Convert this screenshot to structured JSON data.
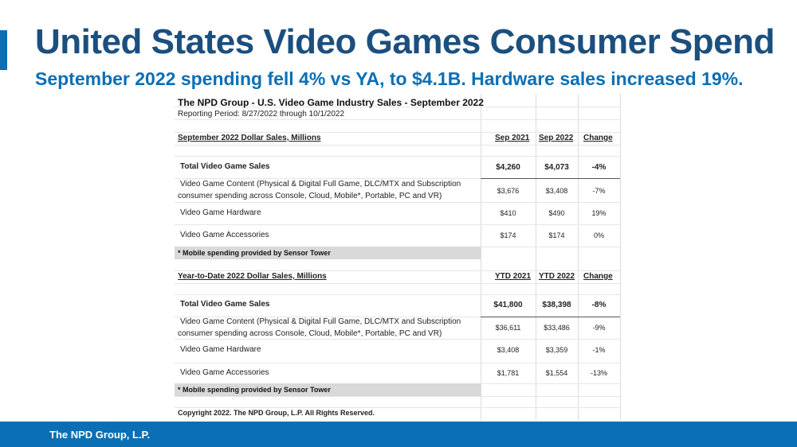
{
  "slide": {
    "title": "United States Video Games Consumer Spend",
    "subtitle": "September 2022 spending fell 4% vs YA, to $4.1B. Hardware sales increased 19%."
  },
  "sheet": {
    "title": "The NPD Group - U.S. Video Game Industry Sales - September 2022",
    "period": "Reporting Period: 8/27/2022 through 10/1/2022",
    "monthly": {
      "section_label": "September 2022 Dollar Sales, Millions",
      "col1": "Sep 2021",
      "col2": "Sep 2022",
      "col3": "Change",
      "rows": [
        {
          "label": "Total Video Game Sales",
          "v1": "$4,260",
          "v2": "$4,073",
          "chg": "-4%"
        },
        {
          "label": "Video Game Content (Physical & Digital Full Game, DLC/MTX and Subscription",
          "label2": "consumer spending across Console, Cloud, Mobile*, Portable, PC and VR)",
          "v1": "$3,676",
          "v2": "$3,408",
          "chg": "-7%"
        },
        {
          "label": "Video Game Hardware",
          "v1": "$410",
          "v2": "$490",
          "chg": "19%"
        },
        {
          "label": "Video Game Accessories",
          "v1": "$174",
          "v2": "$174",
          "chg": "0%"
        }
      ],
      "note": "* Mobile spending provided by Sensor Tower"
    },
    "ytd": {
      "section_label": "Year-to-Date 2022 Dollar Sales, Millions",
      "col1": "YTD 2021",
      "col2": "YTD 2022",
      "col3": "Change",
      "rows": [
        {
          "label": "Total Video Game Sales",
          "v1": "$41,800",
          "v2": "$38,398",
          "chg": "-8%"
        },
        {
          "label": "Video Game Content (Physical & Digital Full Game, DLC/MTX and Subscription",
          "label2": "consumer spending across Console, Cloud, Mobile*, Portable, PC and VR)",
          "v1": "$36,611",
          "v2": "$33,486",
          "chg": "-9%"
        },
        {
          "label": "Video Game Hardware",
          "v1": "$3,408",
          "v2": "$3,359",
          "chg": "-1%"
        },
        {
          "label": "Video Game Accessories",
          "v1": "$1,781",
          "v2": "$1,554",
          "chg": "-13%"
        }
      ],
      "note": "* Mobile spending provided by Sensor Tower"
    },
    "copyright": "Copyright 2022.  The NPD Group, L.P.  All Rights Reserved."
  },
  "footer": {
    "company": "The NPD Group, L.P."
  },
  "colors": {
    "title": "#1b4f7e",
    "subtitle": "#0a6fb5",
    "footer_bar": "#0a6fb5",
    "note_fill": "#d9d9d9"
  }
}
